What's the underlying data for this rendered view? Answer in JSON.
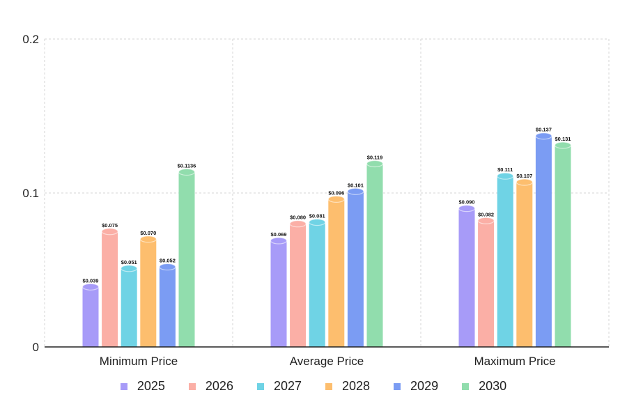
{
  "chart_data": {
    "type": "bar",
    "categories": [
      "Minimum Price",
      "Average Price",
      "Maximum Price"
    ],
    "y_ticks": [
      {
        "value": 0,
        "label": "0"
      },
      {
        "value": 0.1,
        "label": "0.1"
      },
      {
        "value": 0.2,
        "label": "0.2"
      }
    ],
    "ylim": [
      0,
      0.2
    ],
    "grid": true,
    "legend_position": "bottom",
    "series": [
      {
        "name": "2025",
        "color": "#A79BF8",
        "values": [
          0.039,
          0.069,
          0.09
        ],
        "labels": [
          "$0.039",
          "$0.069",
          "$0.090"
        ]
      },
      {
        "name": "2026",
        "color": "#FBAFA6",
        "values": [
          0.075,
          0.08,
          0.082
        ],
        "labels": [
          "$0.075",
          "$0.080",
          "$0.082"
        ]
      },
      {
        "name": "2027",
        "color": "#6FD3E5",
        "values": [
          0.051,
          0.081,
          0.111
        ],
        "labels": [
          "$0.051",
          "$0.081",
          "$0.111"
        ]
      },
      {
        "name": "2028",
        "color": "#FDBE6E",
        "values": [
          0.07,
          0.096,
          0.107
        ],
        "labels": [
          "$0.070",
          "$0.096",
          "$0.107"
        ]
      },
      {
        "name": "2029",
        "color": "#7B9CF3",
        "values": [
          0.052,
          0.101,
          0.137
        ],
        "labels": [
          "$0.052",
          "$0.101",
          "$0.137"
        ]
      },
      {
        "name": "2030",
        "color": "#91DDAD",
        "values": [
          0.1136,
          0.119,
          0.131
        ],
        "labels": [
          "$0.1136",
          "$0.119",
          "$0.131"
        ]
      }
    ]
  }
}
